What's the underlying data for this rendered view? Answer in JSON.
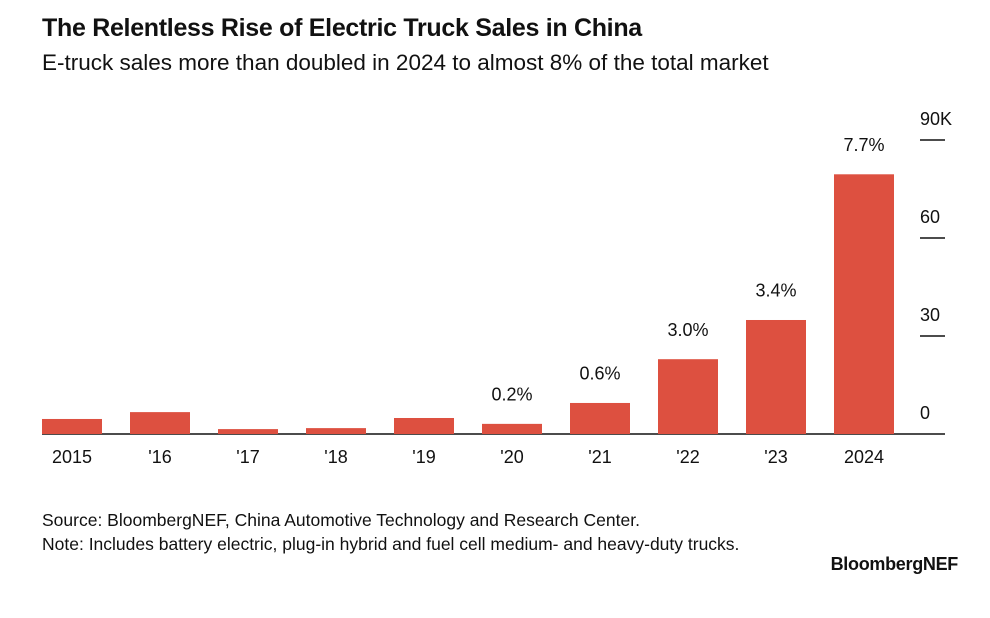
{
  "chart_data": {
    "type": "bar",
    "title": "The Relentless Rise of Electric Truck Sales in China",
    "subtitle": "E-truck sales more than doubled in 2024 to almost 8% of the total market",
    "categories": [
      "2015",
      "'16",
      "'17",
      "'18",
      "'19",
      "'20",
      "'21",
      "'22",
      "'23",
      "2024"
    ],
    "values": [
      4.6,
      6.7,
      1.5,
      1.8,
      4.9,
      3.1,
      9.5,
      22.9,
      34.9,
      79.5
    ],
    "annotations": [
      null,
      null,
      null,
      null,
      null,
      "0.2%",
      "0.6%",
      "3.0%",
      "3.4%",
      "7.7%"
    ],
    "color": "#dd5040",
    "ylim": [
      0,
      90
    ],
    "yticks": [
      0,
      30,
      60,
      {
        "value": 90,
        "label": "90K"
      }
    ],
    "source": "Source: BloombergNEF, China Automotive Technology and Research Center.",
    "note": "Note: Includes battery electric, plug-in hybrid and fuel cell medium- and heavy-duty trucks.",
    "brand": "BloombergNEF"
  }
}
